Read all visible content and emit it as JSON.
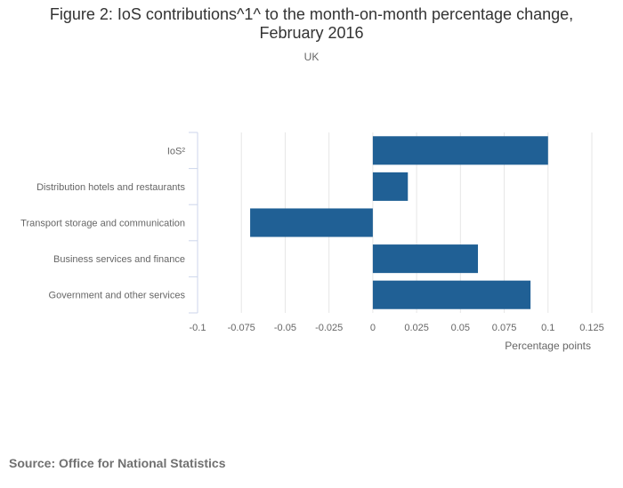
{
  "title": "Figure 2: IoS contributions^1^ to the month-on-month percentage change, February 2016",
  "subtitle": "UK",
  "source": "Source: Office for National Statistics",
  "colors": {
    "bar": "#206095",
    "grid": "#e6e6e6",
    "axis": "#ccd6eb",
    "text": "#666666"
  },
  "chart_data": {
    "type": "bar",
    "orientation": "horizontal",
    "title": "Figure 2: IoS contributions^1^ to the month-on-month percentage change, February 2016",
    "subtitle": "UK",
    "categories": [
      "IoS²",
      "Distribution hotels and restaurants",
      "Transport storage and communication",
      "Business services and finance",
      "Government and other services"
    ],
    "values": [
      0.1,
      0.02,
      -0.07,
      0.06,
      0.09
    ],
    "xlabel": "Percentage points",
    "ylabel": "",
    "xlim": [
      -0.1,
      0.125
    ],
    "xticks": [
      -0.1,
      -0.075,
      -0.05,
      -0.025,
      0,
      0.025,
      0.05,
      0.075,
      0.1,
      0.125
    ],
    "xtick_labels": [
      "-0.1",
      "-0.075",
      "-0.05",
      "-0.025",
      "0",
      "0.025",
      "0.05",
      "0.075",
      "0.1",
      "0.125"
    ],
    "grid": true,
    "legend": false
  }
}
